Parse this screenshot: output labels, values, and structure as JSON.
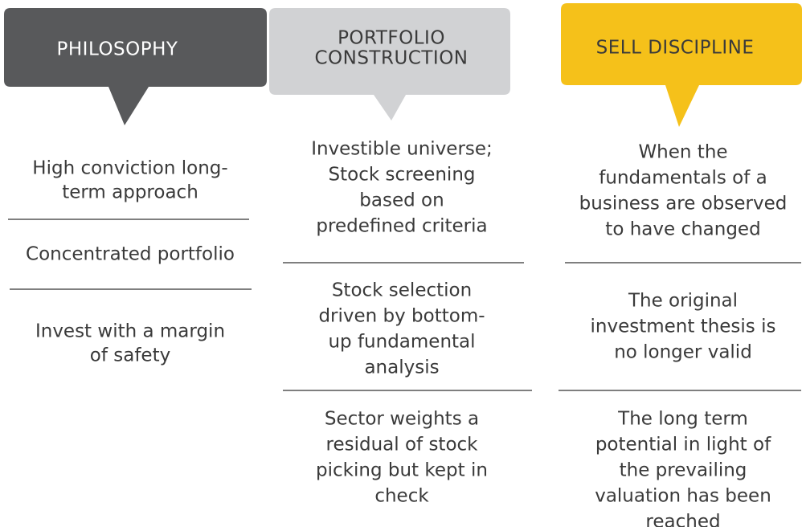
{
  "columns": [
    {
      "title": [
        "PHILOSOPHY"
      ],
      "items": [
        [
          "High conviction long-",
          "term approach"
        ],
        [
          "Concentrated portfolio"
        ],
        [
          "Invest with a margin",
          "of safety"
        ]
      ]
    },
    {
      "title": [
        "PORTFOLIO",
        "CONSTRUCTION"
      ],
      "items": [
        [
          "Investible universe;",
          "Stock screening",
          "based on",
          "predefined criteria"
        ],
        [
          "Stock selection",
          "driven by bottom-",
          "up fundamental",
          "analysis"
        ],
        [
          "Sector weights a",
          "residual of stock",
          "picking but kept in",
          "check"
        ]
      ]
    },
    {
      "title": [
        "SELL DISCIPLINE"
      ],
      "items": [
        [
          "When the",
          "fundamentals of a",
          "business are observed",
          "to have changed"
        ],
        [
          "The original",
          "investment thesis is",
          "no longer valid"
        ],
        [
          "The long term",
          "potential in light of",
          "the prevailing",
          "valuation has been",
          "reached"
        ]
      ]
    }
  ]
}
